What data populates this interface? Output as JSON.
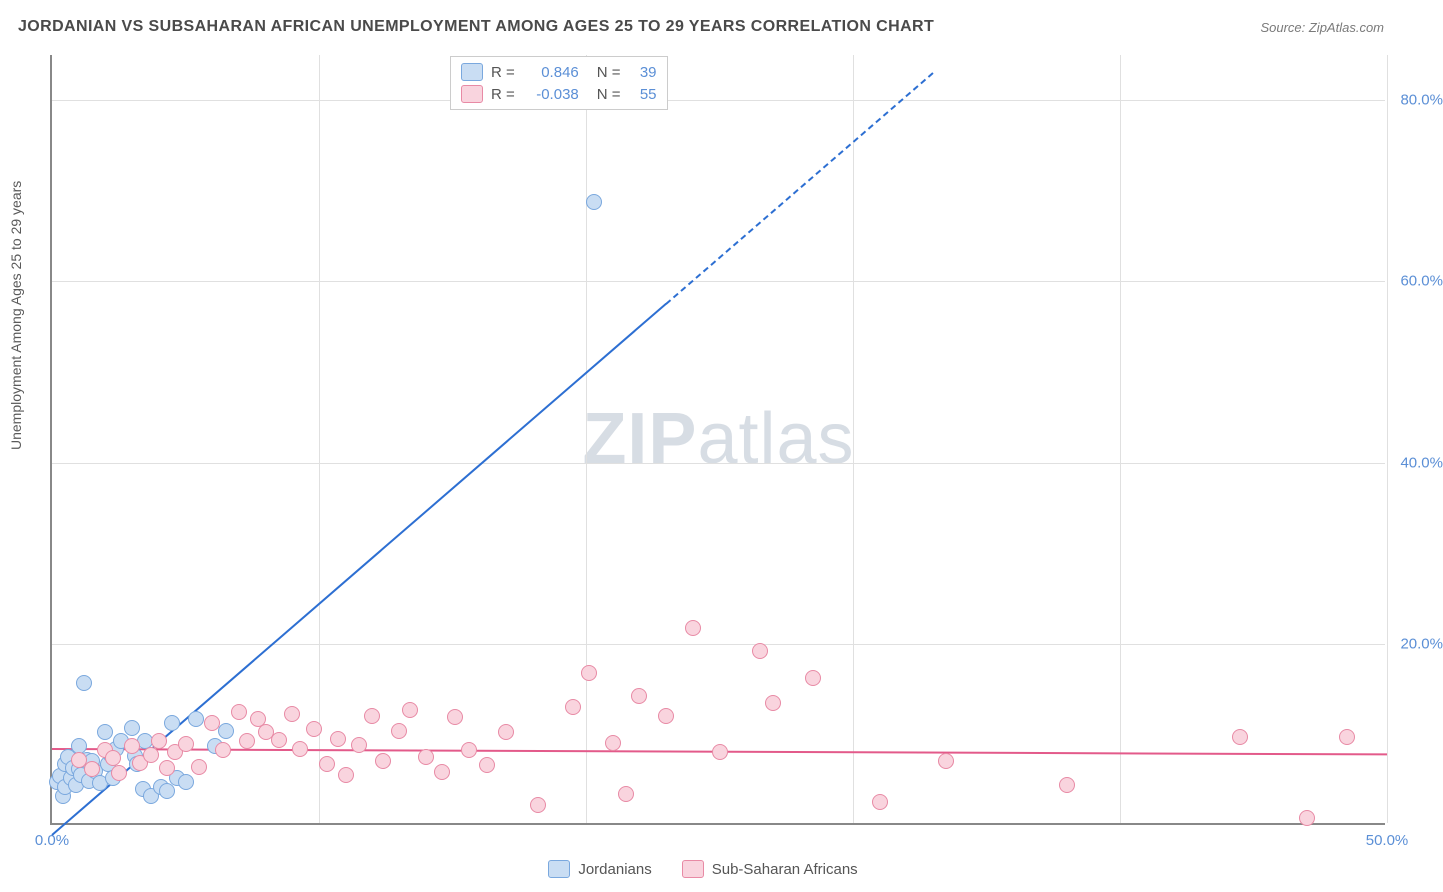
{
  "title": "JORDANIAN VS SUBSAHARAN AFRICAN UNEMPLOYMENT AMONG AGES 25 TO 29 YEARS CORRELATION CHART",
  "source": "Source: ZipAtlas.com",
  "ylabel": "Unemployment Among Ages 25 to 29 years",
  "watermark_a": "ZIP",
  "watermark_b": "atlas",
  "chart": {
    "type": "scatter",
    "background_color": "#ffffff",
    "grid_color": "#e0e0e0",
    "axis_color": "#888888",
    "tick_color": "#5b8fd6",
    "tick_fontsize": 15,
    "title_fontsize": 16,
    "label_fontsize": 14,
    "xlim": [
      0,
      50
    ],
    "ylim": [
      0,
      85
    ],
    "xticks": [
      0,
      50
    ],
    "xtick_labels": [
      "0.0%",
      "50.0%"
    ],
    "yticks": [
      20,
      40,
      60,
      80
    ],
    "ytick_labels": [
      "20.0%",
      "40.0%",
      "60.0%",
      "80.0%"
    ],
    "grid_v": [
      10,
      20,
      30,
      40,
      50
    ],
    "marker_radius": 8,
    "marker_stroke_width": 1.2,
    "series": [
      {
        "name": "Jordanians",
        "fill": "#c9ddf3",
        "stroke": "#7aa8de",
        "r_label": "R =",
        "r_value": "0.846",
        "n_label": "N =",
        "n_value": "39",
        "trend": {
          "slope": 2.55,
          "intercept": -1.0,
          "x_solid_max": 23,
          "x_dash_max": 33,
          "color": "#2d6fd2"
        },
        "points": [
          [
            0.2,
            4.5
          ],
          [
            0.3,
            5.2
          ],
          [
            0.4,
            3.0
          ],
          [
            0.5,
            6.5
          ],
          [
            0.5,
            4.0
          ],
          [
            0.6,
            7.3
          ],
          [
            0.7,
            5.0
          ],
          [
            0.8,
            6.1
          ],
          [
            0.9,
            4.2
          ],
          [
            1.0,
            8.5
          ],
          [
            1.0,
            6.0
          ],
          [
            1.1,
            5.3
          ],
          [
            1.2,
            15.5
          ],
          [
            1.3,
            7.0
          ],
          [
            1.4,
            4.6
          ],
          [
            1.5,
            6.8
          ],
          [
            1.6,
            5.7
          ],
          [
            1.8,
            4.4
          ],
          [
            2.0,
            10.0
          ],
          [
            2.1,
            6.5
          ],
          [
            2.2,
            7.5
          ],
          [
            2.3,
            5.0
          ],
          [
            2.4,
            8.2
          ],
          [
            2.6,
            9.0
          ],
          [
            3.0,
            10.5
          ],
          [
            3.1,
            7.4
          ],
          [
            3.4,
            3.8
          ],
          [
            3.5,
            9.0
          ],
          [
            3.7,
            3.0
          ],
          [
            4.1,
            4.0
          ],
          [
            4.3,
            3.5
          ],
          [
            4.5,
            11.0
          ],
          [
            4.7,
            5.0
          ],
          [
            5.0,
            4.5
          ],
          [
            5.4,
            11.5
          ],
          [
            6.1,
            8.5
          ],
          [
            6.5,
            10.2
          ],
          [
            20.3,
            68.5
          ],
          [
            3.2,
            6.5
          ]
        ]
      },
      {
        "name": "Sub-Saharan Africans",
        "fill": "#f9d4de",
        "stroke": "#e88aa5",
        "r_label": "R =",
        "r_value": "-0.038",
        "n_label": "N =",
        "n_value": "55",
        "trend": {
          "slope": -0.012,
          "intercept": 8.5,
          "x_solid_max": 50,
          "x_dash_max": 50,
          "color": "#e35a8a"
        },
        "points": [
          [
            1.0,
            7.0
          ],
          [
            1.5,
            6.0
          ],
          [
            2.0,
            8.1
          ],
          [
            2.3,
            7.2
          ],
          [
            2.5,
            5.5
          ],
          [
            3.0,
            8.5
          ],
          [
            3.3,
            6.6
          ],
          [
            3.7,
            7.5
          ],
          [
            4.0,
            9.0
          ],
          [
            4.3,
            6.1
          ],
          [
            4.6,
            7.8
          ],
          [
            5.0,
            8.7
          ],
          [
            5.5,
            6.2
          ],
          [
            6.0,
            11.0
          ],
          [
            6.4,
            8.1
          ],
          [
            7.0,
            12.2
          ],
          [
            7.3,
            9.1
          ],
          [
            7.7,
            11.5
          ],
          [
            8.0,
            10.0
          ],
          [
            8.5,
            9.2
          ],
          [
            9.0,
            12.0
          ],
          [
            9.3,
            8.2
          ],
          [
            9.8,
            10.4
          ],
          [
            10.3,
            6.5
          ],
          [
            10.7,
            9.3
          ],
          [
            11.0,
            5.3
          ],
          [
            11.5,
            8.6
          ],
          [
            12.0,
            11.8
          ],
          [
            12.4,
            6.9
          ],
          [
            13.0,
            10.2
          ],
          [
            13.4,
            12.5
          ],
          [
            14.0,
            7.3
          ],
          [
            14.6,
            5.6
          ],
          [
            15.1,
            11.7
          ],
          [
            15.6,
            8.1
          ],
          [
            16.3,
            6.4
          ],
          [
            17.0,
            10.0
          ],
          [
            18.2,
            2.0
          ],
          [
            19.5,
            12.8
          ],
          [
            20.1,
            16.6
          ],
          [
            21.0,
            8.8
          ],
          [
            22.0,
            14.0
          ],
          [
            23.0,
            11.8
          ],
          [
            24.0,
            21.5
          ],
          [
            25.0,
            7.8
          ],
          [
            26.5,
            19.0
          ],
          [
            27.0,
            13.2
          ],
          [
            28.5,
            16.0
          ],
          [
            31.0,
            2.3
          ],
          [
            33.5,
            6.8
          ],
          [
            38.0,
            4.2
          ],
          [
            44.5,
            9.5
          ],
          [
            47.0,
            0.5
          ],
          [
            48.5,
            9.5
          ],
          [
            21.5,
            3.2
          ]
        ]
      }
    ]
  },
  "legend_bottom": [
    {
      "label": "Jordanians",
      "fill": "#c9ddf3",
      "stroke": "#7aa8de"
    },
    {
      "label": "Sub-Saharan Africans",
      "fill": "#f9d4de",
      "stroke": "#e88aa5"
    }
  ]
}
